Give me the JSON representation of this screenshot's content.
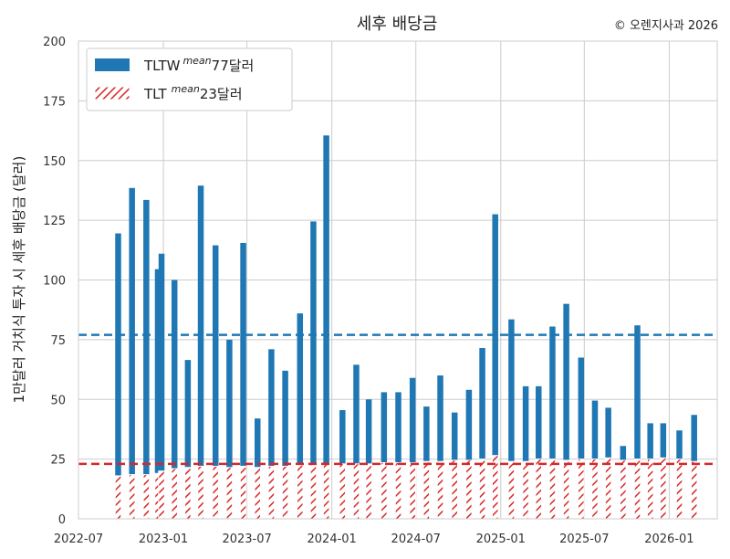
{
  "chart_data": {
    "type": "bar",
    "title": "세후 배당금",
    "copyright": "© 오렌지사과 2026",
    "ylabel": "1만달러 거치식 투자 시 세후 배당금 (달러)",
    "xlabel": "",
    "ylim": [
      0,
      200
    ],
    "xlim": [
      "2022-07-01",
      "2026-04-15"
    ],
    "yticks": [
      0,
      25,
      50,
      75,
      100,
      125,
      150,
      175,
      200
    ],
    "xticks": [
      "2022-07",
      "2023-01",
      "2023-07",
      "2024-01",
      "2024-07",
      "2025-01",
      "2025-07",
      "2026-01"
    ],
    "grid": true,
    "legend_position": "top-left",
    "x": [
      "2022-09-25",
      "2022-10-25",
      "2022-11-25",
      "2022-12-20",
      "2022-12-28",
      "2023-01-25",
      "2023-02-23",
      "2023-03-23",
      "2023-04-24",
      "2023-05-24",
      "2023-06-23",
      "2023-07-24",
      "2023-08-23",
      "2023-09-22",
      "2023-10-24",
      "2023-11-22",
      "2023-12-20",
      "2024-01-24",
      "2024-02-23",
      "2024-03-21",
      "2024-04-23",
      "2024-05-24",
      "2024-06-24",
      "2024-07-24",
      "2024-08-23",
      "2024-09-23",
      "2024-10-24",
      "2024-11-22",
      "2024-12-20",
      "2025-01-24",
      "2025-02-24",
      "2025-03-24",
      "2025-04-23",
      "2025-05-23",
      "2025-06-24",
      "2025-07-24",
      "2025-08-22",
      "2025-09-23",
      "2025-10-24",
      "2025-11-21",
      "2025-12-19",
      "2026-01-23",
      "2026-02-24"
    ],
    "series": [
      {
        "name": "TLTW",
        "name_sup": "mean",
        "name_suffix": "77달러",
        "color": "#1f77b4",
        "mean": 77,
        "values": [
          119.5,
          138.5,
          133.5,
          104.5,
          111,
          100,
          66.5,
          139.5,
          114.5,
          75,
          115.5,
          42,
          71,
          62,
          86,
          124.5,
          160.5,
          45.5,
          64.5,
          50,
          53,
          53,
          59,
          47,
          60,
          44.5,
          54,
          71.5,
          127.5,
          83.5,
          55.5,
          55.5,
          80.5,
          90,
          67.5,
          49.5,
          46.5,
          30.5,
          81,
          40,
          40,
          37,
          43.5
        ]
      },
      {
        "name": "TLT",
        "name_sup": "mean",
        "name_suffix": "23달러",
        "color": "#d62728",
        "mean": 23,
        "values": [
          18,
          18.5,
          18.5,
          19,
          20,
          21,
          21.5,
          22,
          22,
          21.5,
          22,
          21.5,
          22,
          22,
          22.5,
          23,
          23,
          23,
          23,
          23,
          23.5,
          23.5,
          23.5,
          24,
          24,
          24.5,
          24.5,
          25,
          26.5,
          24,
          24,
          25,
          25,
          24.5,
          25,
          25,
          25.5,
          24.5,
          25,
          25,
          25.5,
          25,
          24
        ]
      }
    ]
  }
}
